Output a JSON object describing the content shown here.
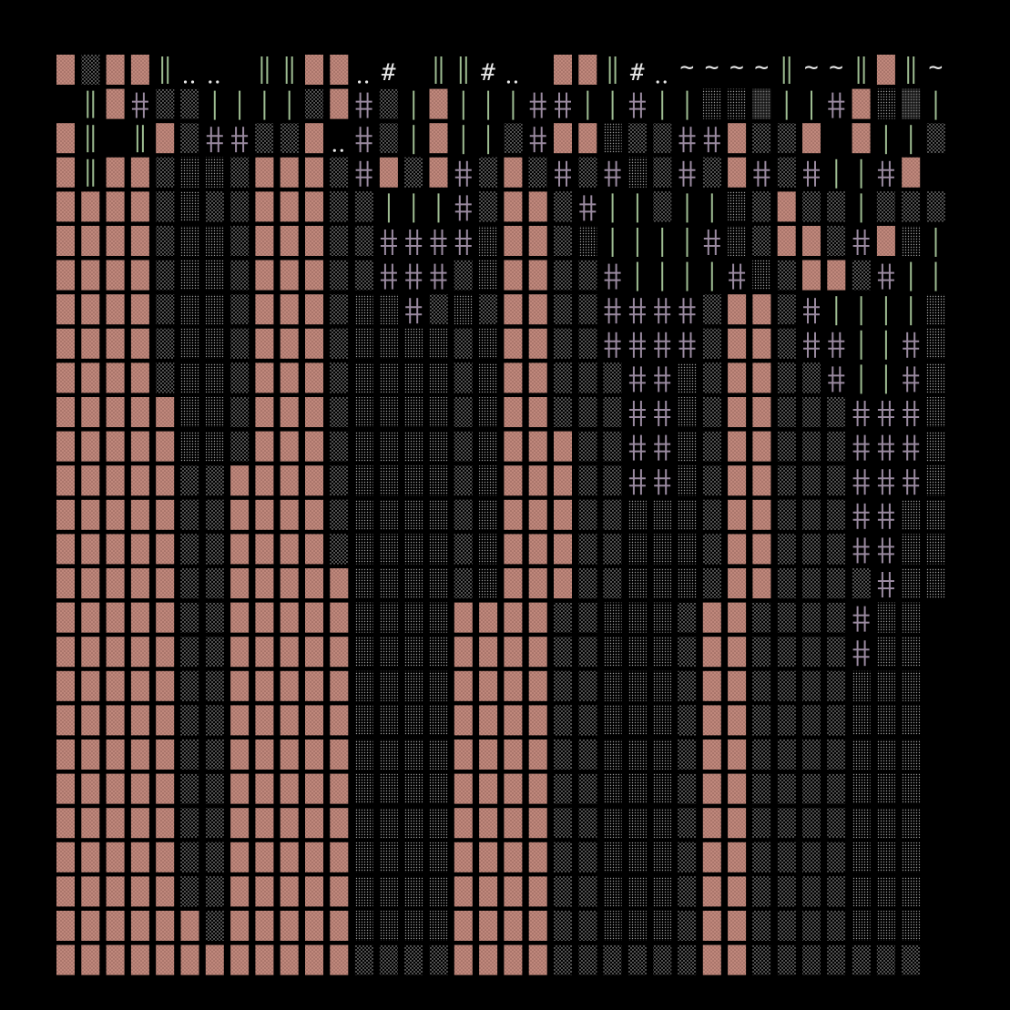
{
  "palette": {
    "background": "#000000",
    "pink": "#c0887c",
    "pink_dot": "#8e5f56",
    "light_dot": "#c9c9c9",
    "mid_dot": "#9a9a9a",
    "dark_dot": "#5a5a5a",
    "green_glyph": "#9ebd92",
    "purple_glyph": "#9a8aa0",
    "white_glyph": "#e6e6e6"
  },
  "grid": {
    "cols": 36,
    "rows": 27
  },
  "legend": {
    "P": "pink-dotted-block",
    "L": "light-stipple-block",
    "M": "medium-stipple-block",
    "D": "dense-stipple-block",
    "b": "blank",
    "+": "double-cross-glyph",
    "|": "single-bar-glyph",
    "=": "double-bar-glyph",
    "#": "hash-glyph",
    ".": "dots-glyph",
    "~": "tilde-glyph"
  },
  "cells": [
    "PLPP=..b==PP.#b==#.bPP=#.~~~~=~~=P=~.#P~~=",
    "b=P+LL||||LP+L|P|||++||+||MMD||+PMD||M||D||",
    "P=b=PL++LLP.+L|P||L+PPMLL++PLLPbP||L+||",
    "P=PPLMMLPPPL+PLP+LPL+L+ML+LP+L+||+P",
    "PPPPLMLLPPPLL|||+LPPL+||L||MLPLL|LLLM|",
    "PPPPLMMLPPPLL++++MPPLM||||+MLPPL+PM|+",
    "PPPPLMMLPPPLL+++LMPPLL+||||+MLPPL+||P||+",
    "PPPPLMMLPPPLMM+LMLPPLL++++LPPL+||||M",
    "PPPPLMMLPPPLMMMMLMPPLL++++LPPL++||+M",
    "PPPPLMMLPPPLMMMMLMPPLLL++MLPPLL+||+M",
    "PPPPPMMLPPPLMMMMLMPPLLL++MLPPLLL+++M",
    "PPPPPMMLPPPLMMMMLMPPPLL++MLPPLLL+++M",
    "PPPPPLLPPPPLMMMMLMPPPLL++MLPPLLL+++M",
    "PPPPPLLPPPPLMMMMLMPPPLLMMMLPPLLL++MM",
    "PPPPPLLPPPPLMMMMLMPPPLLMMMLPPLLL++MM",
    "PPPPPLLPPPPPMMMMLMPPPLLMMMLPPLLLL+MM",
    "PPPPPLLPPPPPMMMMPPPPLLMMMLPPLLLL+MM",
    "PPPPPLLPPPPPMMMMPPPPLLMMMLPPLLLL+MM",
    "PPPPPLLPPPPPMMMMPPPPLLMMMLPPLLLLMMM",
    "PPPPPLLPPPPPMMMMPPPPLLMMMLPPLLLLMMM",
    "PPPPPLLPPPPPMMMMPPPPLLMMMLPPLLLLMMM",
    "PPPPPLLPPPPPMMMMPPPPLLMMMLPPLLLLMMM",
    "PPPPPLLPPPPPMMMMPPPPLLMMMLPPLLLLMMM",
    "PPPPPLLPPPPPMMMMPPPPLLMMMLPPLLLLMMM",
    "PPPPPLLPPPPPMMMMPPPPLLMMMLPPLLLLMMM",
    "PPPPPPLPPPPPMMMMPPPPLLMMMLPPLLLLMMM",
    "PPPPPPPPPPPPLLLLPPPPLLLLLLPPLLLLLLL"
  ]
}
